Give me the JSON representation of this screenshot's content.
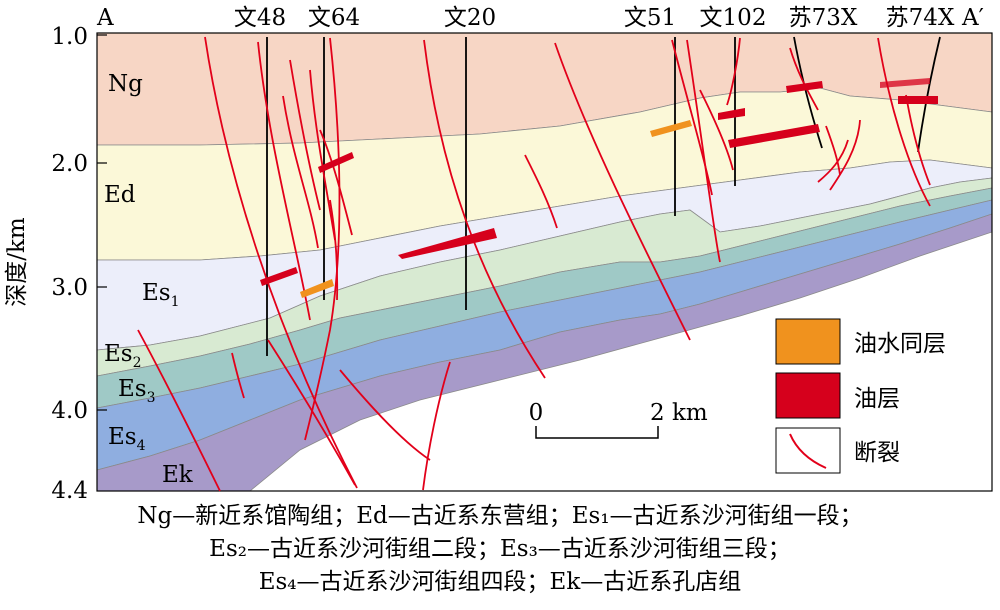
{
  "section": {
    "start_label": "A",
    "end_label": "A′"
  },
  "wells": [
    "文48",
    "文64",
    "文20",
    "文51",
    "文102",
    "苏73X",
    "苏74X"
  ],
  "depth_axis": {
    "label": "深度/km",
    "ticks": [
      "1.0",
      "2.0",
      "3.0",
      "4.0",
      "4.4"
    ]
  },
  "layers": {
    "ng": "Ng",
    "ed": "Ed",
    "es1_main": "Es",
    "es1_sub": "1",
    "es2_main": "Es",
    "es2_sub": "2",
    "es3_main": "Es",
    "es3_sub": "3",
    "es4_main": "Es",
    "es4_sub": "4",
    "ek": "Ek"
  },
  "legend": {
    "oil_water": "油水同层",
    "oil": "油层",
    "fault": "断裂"
  },
  "scale": {
    "zero": "0",
    "end": "2 km"
  },
  "caption": {
    "line1": "Ng—新近系馆陶组；Ed—古近系东营组；Es₁—古近系沙河街组一段；",
    "line2": "Es₂—古近系沙河街组二段；Es₃—古近系沙河街组三段；",
    "line3": "Es₄—古近系沙河街组四段；Ek—古近系孔店组"
  },
  "colors": {
    "ng": "#f7d6c5",
    "ed": "#fbf8d8",
    "es1": "#eceefa",
    "es2": "#d8ead2",
    "es3": "#9fc9c6",
    "es4": "#8faee0",
    "ek": "#a79ac9",
    "oil": "#d6001c",
    "oil_water": "#f0921e",
    "fault": "#e2001a"
  }
}
